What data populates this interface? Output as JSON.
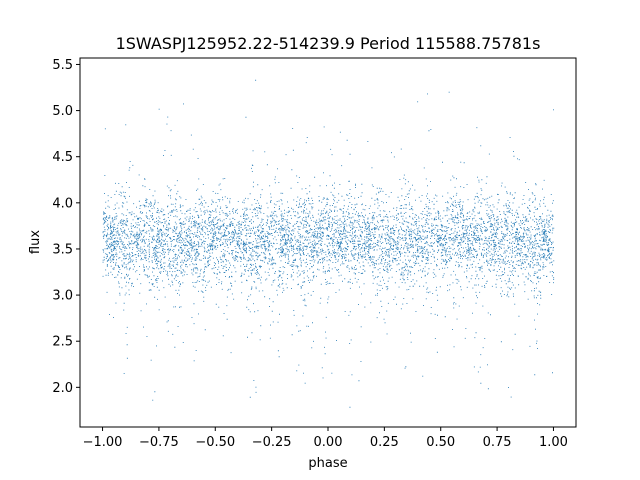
{
  "chart_data": {
    "type": "scatter",
    "title": "1SWASPJ125952.22-514239.9 Period 115588.75781s",
    "xlabel": "phase",
    "ylabel": "flux",
    "xlim": [
      -1.1,
      1.1
    ],
    "ylim": [
      1.57,
      5.57
    ],
    "xticks": [
      -1.0,
      -0.75,
      -0.5,
      -0.25,
      0.0,
      0.25,
      0.5,
      0.75,
      1.0
    ],
    "xtick_labels": [
      "−1.00",
      "−0.75",
      "−0.50",
      "−0.25",
      "0.00",
      "0.25",
      "0.50",
      "0.75",
      "1.00"
    ],
    "yticks": [
      2.0,
      2.5,
      3.0,
      3.5,
      4.0,
      4.5,
      5.0,
      5.5
    ],
    "ytick_labels": [
      "2.0",
      "2.5",
      "3.0",
      "3.5",
      "4.0",
      "4.5",
      "5.0",
      "5.5"
    ],
    "grid": false,
    "marker_color": "#1f77b4",
    "series": [
      {
        "x_range": [
          -1.0,
          1.0
        ],
        "flux_median": 3.6,
        "flux_core_range": [
          3.0,
          4.2
        ],
        "flux_full_range": [
          1.75,
          5.4
        ],
        "note_pattern": "dense band of points with periodic vertical striations across phase"
      }
    ]
  }
}
